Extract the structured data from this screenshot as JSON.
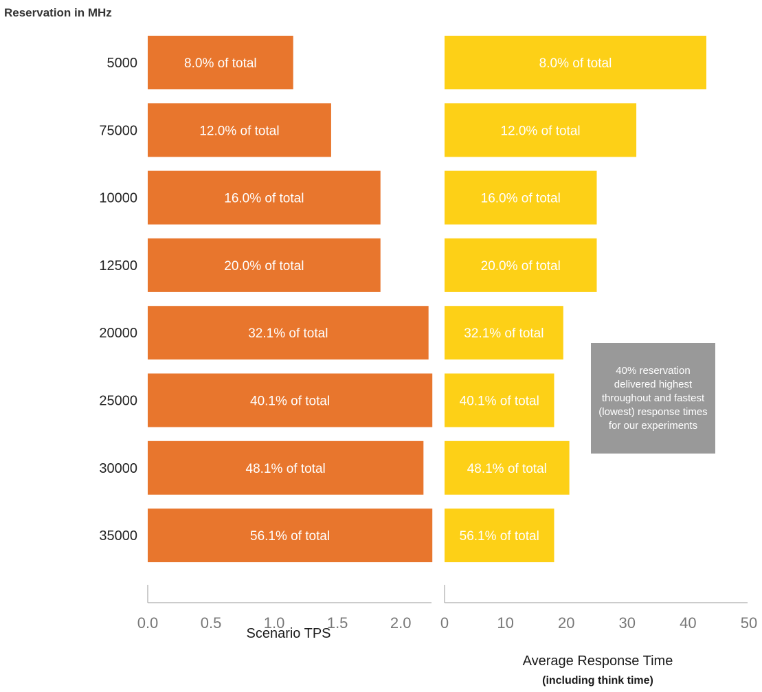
{
  "chart_data": [
    {
      "type": "bar",
      "orientation": "horizontal",
      "categories": [
        "5000",
        "75000",
        "10000",
        "12500",
        "20000",
        "25000",
        "30000",
        "35000"
      ],
      "values": [
        1.15,
        1.45,
        1.84,
        1.84,
        2.22,
        2.25,
        2.18,
        2.25
      ],
      "bar_labels": [
        "8.0% of total",
        "12.0% of total",
        "16.0% of total",
        "20.0% of total",
        "32.1% of total",
        "40.1% of total",
        "48.1% of total",
        "56.1% of total"
      ],
      "ylabel": "Reservation in MHz",
      "xlabel": "Scenario TPS",
      "xlim": [
        0,
        2.25
      ],
      "xticks": [
        "0.0",
        "0.5",
        "1.0",
        "1.5",
        "2.0"
      ],
      "color": "#E8762D"
    },
    {
      "type": "bar",
      "orientation": "horizontal",
      "categories": [
        "5000",
        "75000",
        "10000",
        "12500",
        "20000",
        "25000",
        "30000",
        "35000"
      ],
      "values": [
        43,
        31.5,
        25,
        25,
        19.5,
        18,
        20.5,
        18
      ],
      "bar_labels": [
        "8.0% of total",
        "12.0% of total",
        "16.0% of total",
        "20.0% of total",
        "32.1% of total",
        "40.1% of total",
        "48.1% of total",
        "56.1% of total"
      ],
      "xlabel": "Average Response Time",
      "xlabel_sub": "(including think time)",
      "xlim": [
        0,
        50
      ],
      "xticks": [
        "0",
        "10",
        "20",
        "30",
        "40",
        "50"
      ],
      "color": "#FDD017"
    }
  ],
  "annotation": "40% reservation delivered highest throughout and fastest (lowest) response times for our experiments"
}
